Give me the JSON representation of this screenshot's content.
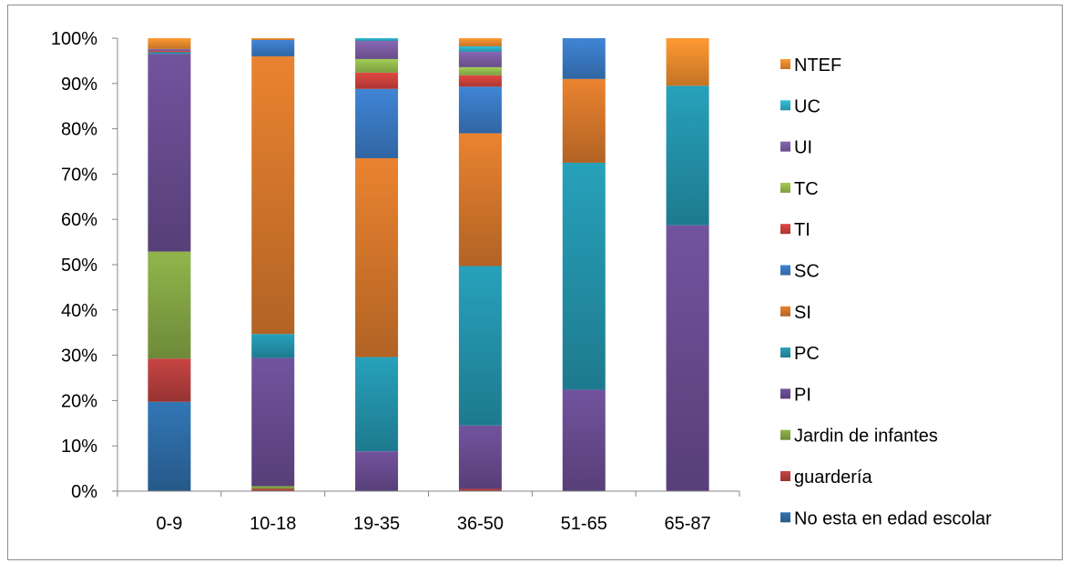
{
  "chart_data": {
    "type": "bar",
    "stacked": true,
    "percent": true,
    "categories": [
      "0-9",
      "10-18",
      "19-35",
      "36-50",
      "51-65",
      "65-87"
    ],
    "y_ticks": [
      "0%",
      "10%",
      "20%",
      "30%",
      "40%",
      "50%",
      "60%",
      "70%",
      "80%",
      "90%",
      "100%"
    ],
    "ylim": [
      0,
      100
    ],
    "grid": false,
    "legend_position": "right",
    "title": "",
    "xlabel": "",
    "ylabel": "",
    "series": [
      {
        "name": "No esta en edad escolar",
        "color": "#2E6DA8",
        "values": [
          19.8,
          0,
          0,
          0,
          0,
          0
        ]
      },
      {
        "name": "guardería",
        "color": "#B8403E",
        "values": [
          9.6,
          0.5,
          0,
          0.5,
          0,
          0
        ]
      },
      {
        "name": "Jardin de infantes",
        "color": "#86A845",
        "values": [
          23.7,
          0.6,
          0,
          0,
          0,
          0
        ]
      },
      {
        "name": "PI",
        "color": "#6A4D92",
        "values": [
          43.8,
          28.3,
          8.8,
          14.0,
          22.4,
          58.7
        ]
      },
      {
        "name": "PC",
        "color": "#2495AD",
        "values": [
          0.4,
          5.3,
          20.8,
          35.2,
          50.1,
          30.8
        ]
      },
      {
        "name": "SI",
        "color": "#D9792C",
        "values": [
          0,
          61.3,
          43.9,
          29.3,
          18.5,
          0
        ]
      },
      {
        "name": "SC",
        "color": "#3B7BC6",
        "values": [
          0,
          3.6,
          15.3,
          10.3,
          9.0,
          0
        ]
      },
      {
        "name": "TI",
        "color": "#D0423E",
        "values": [
          0.3,
          0,
          3.6,
          2.5,
          0,
          0
        ]
      },
      {
        "name": "TC",
        "color": "#97BF4E",
        "values": [
          0,
          0,
          3.0,
          1.8,
          0,
          0
        ]
      },
      {
        "name": "UI",
        "color": "#7E5EA6",
        "values": [
          0.4,
          0,
          4.0,
          3.4,
          0,
          0
        ]
      },
      {
        "name": "UC",
        "color": "#2FB1CC",
        "values": [
          0,
          0,
          0.6,
          1.2,
          0,
          0
        ]
      },
      {
        "name": "NTEF",
        "color": "#EE8E2E",
        "values": [
          2.4,
          0.4,
          0,
          1.8,
          0,
          10.5
        ]
      }
    ]
  }
}
